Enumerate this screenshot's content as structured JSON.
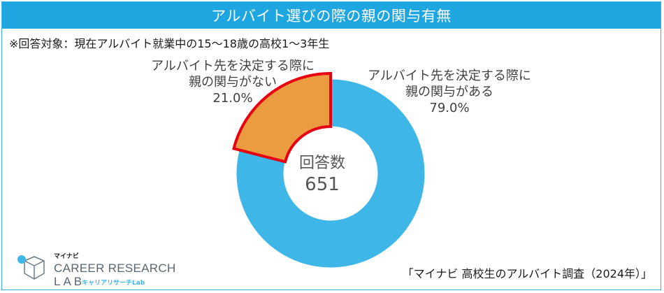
{
  "header": {
    "title": "アルバイト選びの際の親の関与有無"
  },
  "note": "※回答対象：現在アルバイト就業中の15～18歳の高校1～3年生",
  "center": {
    "label": "回答数",
    "value": "651"
  },
  "chart_data": {
    "type": "pie",
    "donut": true,
    "total_label": "回答数",
    "total": 651,
    "slices": [
      {
        "label_line1": "アルバイト先を決定する際に",
        "label_line2": "親の関与がある",
        "value": 79.0,
        "value_text": "79.0%",
        "color": "#3fb6e8",
        "highlight": false
      },
      {
        "label_line1": "アルバイト先を決定する際に",
        "label_line2": "親の関与がない",
        "value": 21.0,
        "value_text": "21.0%",
        "color": "#eb9b40",
        "highlight": true,
        "outline_color": "#e60012"
      }
    ]
  },
  "logo": {
    "brand_small": "マイナビ",
    "line1": "CAREER RESEARCH",
    "line2": "LAB",
    "sub": "キャリアリサーチLab",
    "icon": "cube-logo-icon",
    "accent": "#3fb6e8"
  },
  "source": "「マイナビ 高校生のアルバイト調査（2024年）」"
}
